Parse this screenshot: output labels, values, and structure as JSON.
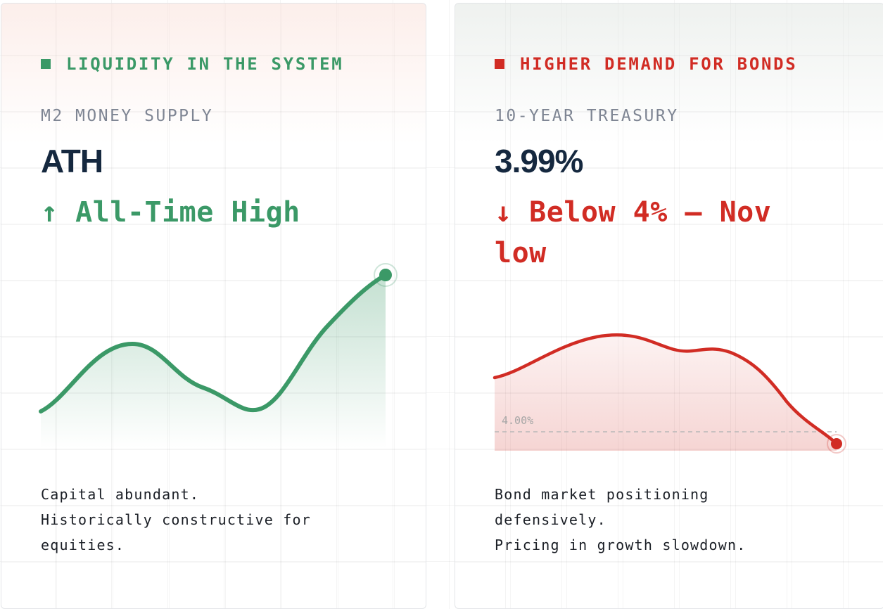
{
  "colors": {
    "green": "#3b9967",
    "red": "#d12c24",
    "navy": "#15283f",
    "gray": "#7e8593"
  },
  "cards": [
    {
      "eyebrow": "LIQUIDITY IN THE SYSTEM",
      "metric_label": "M2 MONEY SUPPLY",
      "metric_value": "ATH",
      "change": "↑ All-Time High",
      "note_lines": [
        "Capital abundant.",
        "Historically constructive for",
        "equities."
      ]
    },
    {
      "eyebrow": "HIGHER DEMAND FOR BONDS",
      "metric_label": "10-YEAR TREASURY",
      "metric_value": "3.99%",
      "change": "↓ Below 4% — Nov low",
      "reference_label": "4.00%",
      "note_lines": [
        "Bond market positioning",
        "defensively.",
        "Pricing in growth slowdown."
      ]
    }
  ],
  "chart_data": [
    {
      "type": "area",
      "series": [
        {
          "values": [
            0.22,
            0.44,
            0.8,
            0.65,
            0.52,
            0.44,
            0.23,
            0.34,
            0.6,
            1.0
          ]
        }
      ],
      "trend": "up",
      "endpoint_marker": true
    },
    {
      "type": "area",
      "series": [
        {
          "values": [
            4.3,
            4.42,
            4.6,
            4.54,
            4.48,
            4.53,
            4.38,
            4.12,
            3.99
          ]
        }
      ],
      "reference_line": 4.0,
      "trend": "down",
      "endpoint_marker": true
    }
  ]
}
